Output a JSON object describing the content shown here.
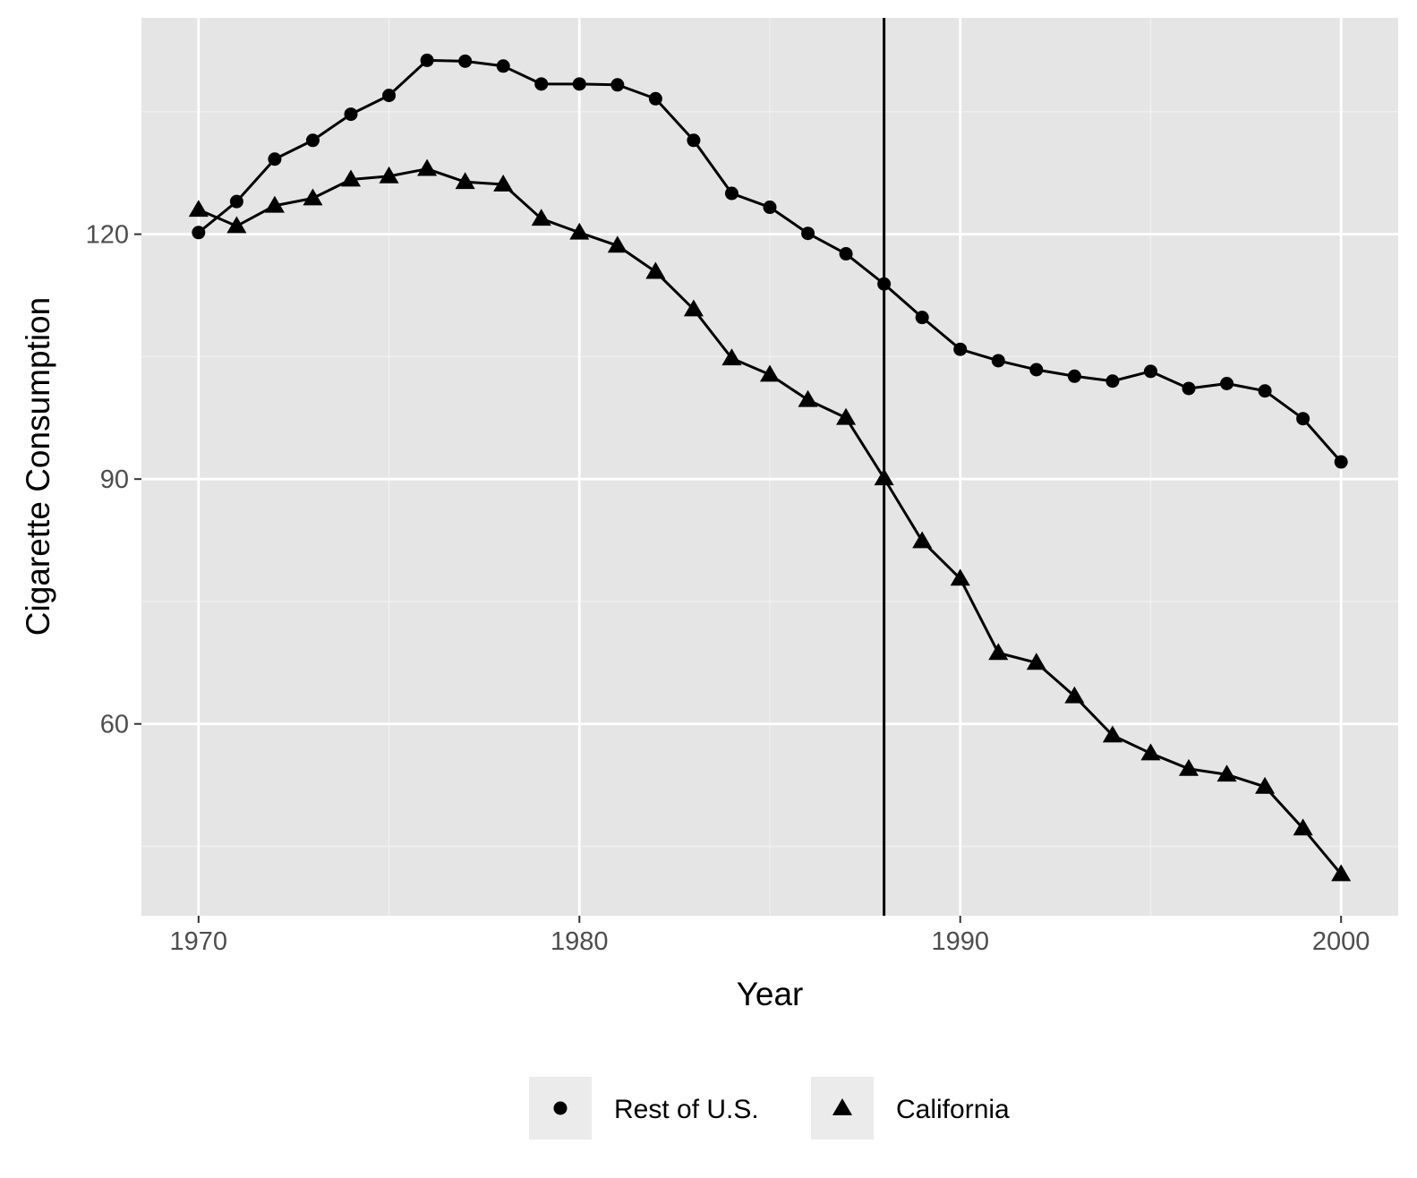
{
  "chart_data": {
    "type": "line",
    "title": "",
    "xlabel": "Year",
    "ylabel": "Cigarette Consumption",
    "xlim": [
      1968.5,
      2001.5
    ],
    "ylim": [
      36.5,
      146.5
    ],
    "x_ticks": [
      1970,
      1980,
      1990,
      2000
    ],
    "y_ticks": [
      60,
      90,
      120
    ],
    "grid": true,
    "legend_position": "bottom",
    "vline": 1988,
    "x": [
      1970,
      1971,
      1972,
      1973,
      1974,
      1975,
      1976,
      1977,
      1978,
      1979,
      1980,
      1981,
      1982,
      1983,
      1984,
      1985,
      1986,
      1987,
      1988,
      1989,
      1990,
      1991,
      1992,
      1993,
      1994,
      1995,
      1996,
      1997,
      1998,
      1999,
      2000
    ],
    "series": [
      {
        "name": "Rest of U.S.",
        "marker": "circle",
        "values": [
          120.2,
          124.0,
          129.2,
          131.5,
          134.7,
          137.0,
          141.3,
          141.2,
          140.6,
          138.4,
          138.4,
          138.3,
          136.6,
          131.5,
          125.0,
          123.3,
          120.1,
          117.6,
          113.9,
          109.8,
          105.9,
          104.5,
          103.4,
          102.6,
          102.0,
          103.2,
          101.1,
          101.7,
          100.8,
          97.4,
          92.1
        ],
        "color": "#000000"
      },
      {
        "name": "California",
        "marker": "triangle",
        "values": [
          123.0,
          121.0,
          123.5,
          124.4,
          126.7,
          127.1,
          128.0,
          126.4,
          126.1,
          121.9,
          120.2,
          118.6,
          115.4,
          110.8,
          104.8,
          102.8,
          99.7,
          97.5,
          90.1,
          82.4,
          77.8,
          68.7,
          67.5,
          63.4,
          58.6,
          56.4,
          54.5,
          53.8,
          52.3,
          47.2,
          41.6
        ],
        "color": "#000000"
      }
    ]
  },
  "colors": {
    "panel_background": "#e5e5e5",
    "grid_major": "#ffffff",
    "grid_minor": "#f0f0f0",
    "line": "#000000",
    "legend_key_background": "#ebebeb"
  }
}
